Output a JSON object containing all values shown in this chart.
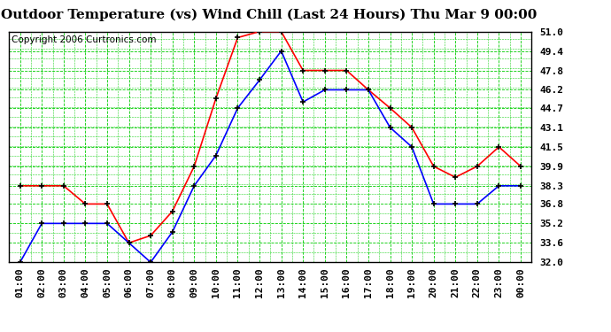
{
  "title": "Outdoor Temperature (vs) Wind Chill (Last 24 Hours) Thu Mar 9 00:00",
  "copyright": "Copyright 2006 Curtronics.com",
  "x_labels": [
    "01:00",
    "02:00",
    "03:00",
    "04:00",
    "05:00",
    "06:00",
    "07:00",
    "08:00",
    "09:00",
    "10:00",
    "11:00",
    "12:00",
    "13:00",
    "14:00",
    "15:00",
    "16:00",
    "17:00",
    "18:00",
    "19:00",
    "20:00",
    "21:00",
    "22:00",
    "23:00",
    "00:00"
  ],
  "y_ticks": [
    32.0,
    33.6,
    35.2,
    36.8,
    38.3,
    39.9,
    41.5,
    43.1,
    44.7,
    46.2,
    47.8,
    49.4,
    51.0
  ],
  "ylim": [
    32.0,
    51.0
  ],
  "temp_red": [
    38.3,
    38.3,
    38.3,
    36.8,
    36.8,
    33.6,
    34.2,
    36.2,
    39.9,
    45.5,
    50.5,
    51.0,
    51.0,
    47.8,
    47.8,
    47.8,
    46.2,
    44.7,
    43.1,
    39.9,
    39.0,
    39.9,
    41.5,
    39.9
  ],
  "wind_blue": [
    32.0,
    35.2,
    35.2,
    35.2,
    35.2,
    33.6,
    32.0,
    34.5,
    38.3,
    40.8,
    44.7,
    47.0,
    49.4,
    45.2,
    46.2,
    46.2,
    46.2,
    43.1,
    41.5,
    36.8,
    36.8,
    36.8,
    38.3,
    38.3
  ],
  "red_color": "#ff0000",
  "blue_color": "#0000ff",
  "grid_major_color": "#00cc00",
  "grid_minor_color": "#00cc00",
  "bg_color": "#ffffff",
  "border_color": "#000000",
  "title_fontsize": 11,
  "tick_fontsize": 8,
  "copyright_fontsize": 7.5
}
